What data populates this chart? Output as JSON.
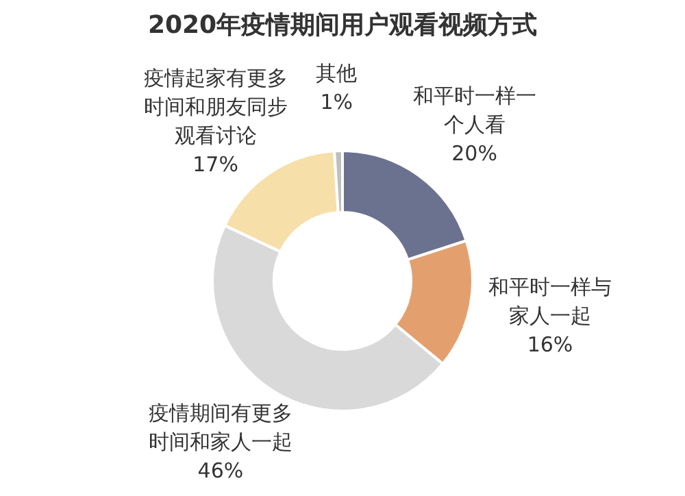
{
  "chart_data": {
    "type": "donut",
    "title": "2020年疫情期间用户观看视频方式",
    "categories": [
      "和平时一样一个人看",
      "和平时一样与家人一起",
      "疫情期间有更多时间和家人一起",
      "疫情起家有更多时间和朋友同步观看讨论",
      "其他"
    ],
    "values": [
      20,
      16,
      46,
      17,
      1
    ],
    "colors": [
      "#6b7290",
      "#e3a06e",
      "#d9d9d9",
      "#f7dfa9",
      "#bfbfbf"
    ],
    "value_labels": [
      "20%",
      "16%",
      "46%",
      "17%",
      "1%"
    ]
  }
}
